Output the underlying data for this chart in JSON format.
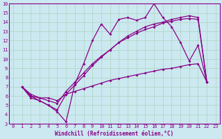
{
  "xlabel": "Windchill (Refroidissement éolien,°C)",
  "bg_color": "#cce8f0",
  "grid_color": "#b0d8c8",
  "line_color": "#880088",
  "spine_color": "#880088",
  "xlim": [
    -0.5,
    23.5
  ],
  "ylim": [
    3,
    16
  ],
  "xticks": [
    0,
    1,
    2,
    3,
    4,
    5,
    6,
    7,
    8,
    9,
    10,
    11,
    12,
    13,
    14,
    15,
    16,
    17,
    18,
    19,
    20,
    21,
    22,
    23
  ],
  "yticks": [
    3,
    4,
    5,
    6,
    7,
    8,
    9,
    10,
    11,
    12,
    13,
    14,
    15,
    16
  ],
  "series": [
    {
      "x": [
        1,
        2,
        3,
        4,
        5,
        6,
        7,
        8,
        9,
        10,
        11,
        12,
        13,
        14,
        15,
        16,
        17,
        18,
        19,
        20,
        21,
        22
      ],
      "y": [
        7.0,
        6.0,
        5.5,
        5.0,
        4.3,
        3.2,
        7.3,
        9.5,
        12.0,
        13.8,
        12.7,
        14.3,
        14.5,
        14.2,
        14.5,
        16.0,
        14.5,
        13.5,
        11.8,
        9.8,
        11.5,
        7.5
      ]
    },
    {
      "x": [
        1,
        2,
        3,
        4,
        5,
        6,
        7,
        8,
        9,
        10,
        11,
        12,
        13,
        14,
        15,
        16,
        17,
        18,
        19,
        20,
        21,
        22
      ],
      "y": [
        7.0,
        5.8,
        5.5,
        5.0,
        4.5,
        6.2,
        7.2,
        8.2,
        9.3,
        10.2,
        11.0,
        11.8,
        12.5,
        13.0,
        13.5,
        13.8,
        14.0,
        14.3,
        14.5,
        14.7,
        14.5,
        7.5
      ]
    },
    {
      "x": [
        1,
        2,
        3,
        4,
        5,
        6,
        7,
        8,
        9,
        10,
        11,
        12,
        13,
        14,
        15,
        16,
        17,
        18,
        19,
        20,
        21,
        22
      ],
      "y": [
        7.0,
        6.0,
        5.8,
        5.5,
        5.2,
        6.5,
        7.5,
        8.5,
        9.5,
        10.3,
        11.0,
        11.8,
        12.3,
        12.8,
        13.2,
        13.5,
        13.9,
        14.1,
        14.3,
        14.4,
        14.3,
        7.5
      ]
    },
    {
      "x": [
        1,
        2,
        3,
        4,
        5,
        6,
        7,
        8,
        9,
        10,
        11,
        12,
        13,
        14,
        15,
        16,
        17,
        18,
        19,
        20,
        21,
        22
      ],
      "y": [
        7.0,
        6.2,
        5.8,
        5.8,
        5.5,
        6.2,
        6.5,
        6.8,
        7.1,
        7.4,
        7.7,
        7.9,
        8.1,
        8.3,
        8.5,
        8.7,
        8.9,
        9.0,
        9.2,
        9.4,
        9.5,
        7.5
      ]
    }
  ],
  "marker": "D",
  "markersize": 2,
  "linewidth": 0.9,
  "xlabel_fontsize": 5.5,
  "tick_fontsize": 5.0
}
